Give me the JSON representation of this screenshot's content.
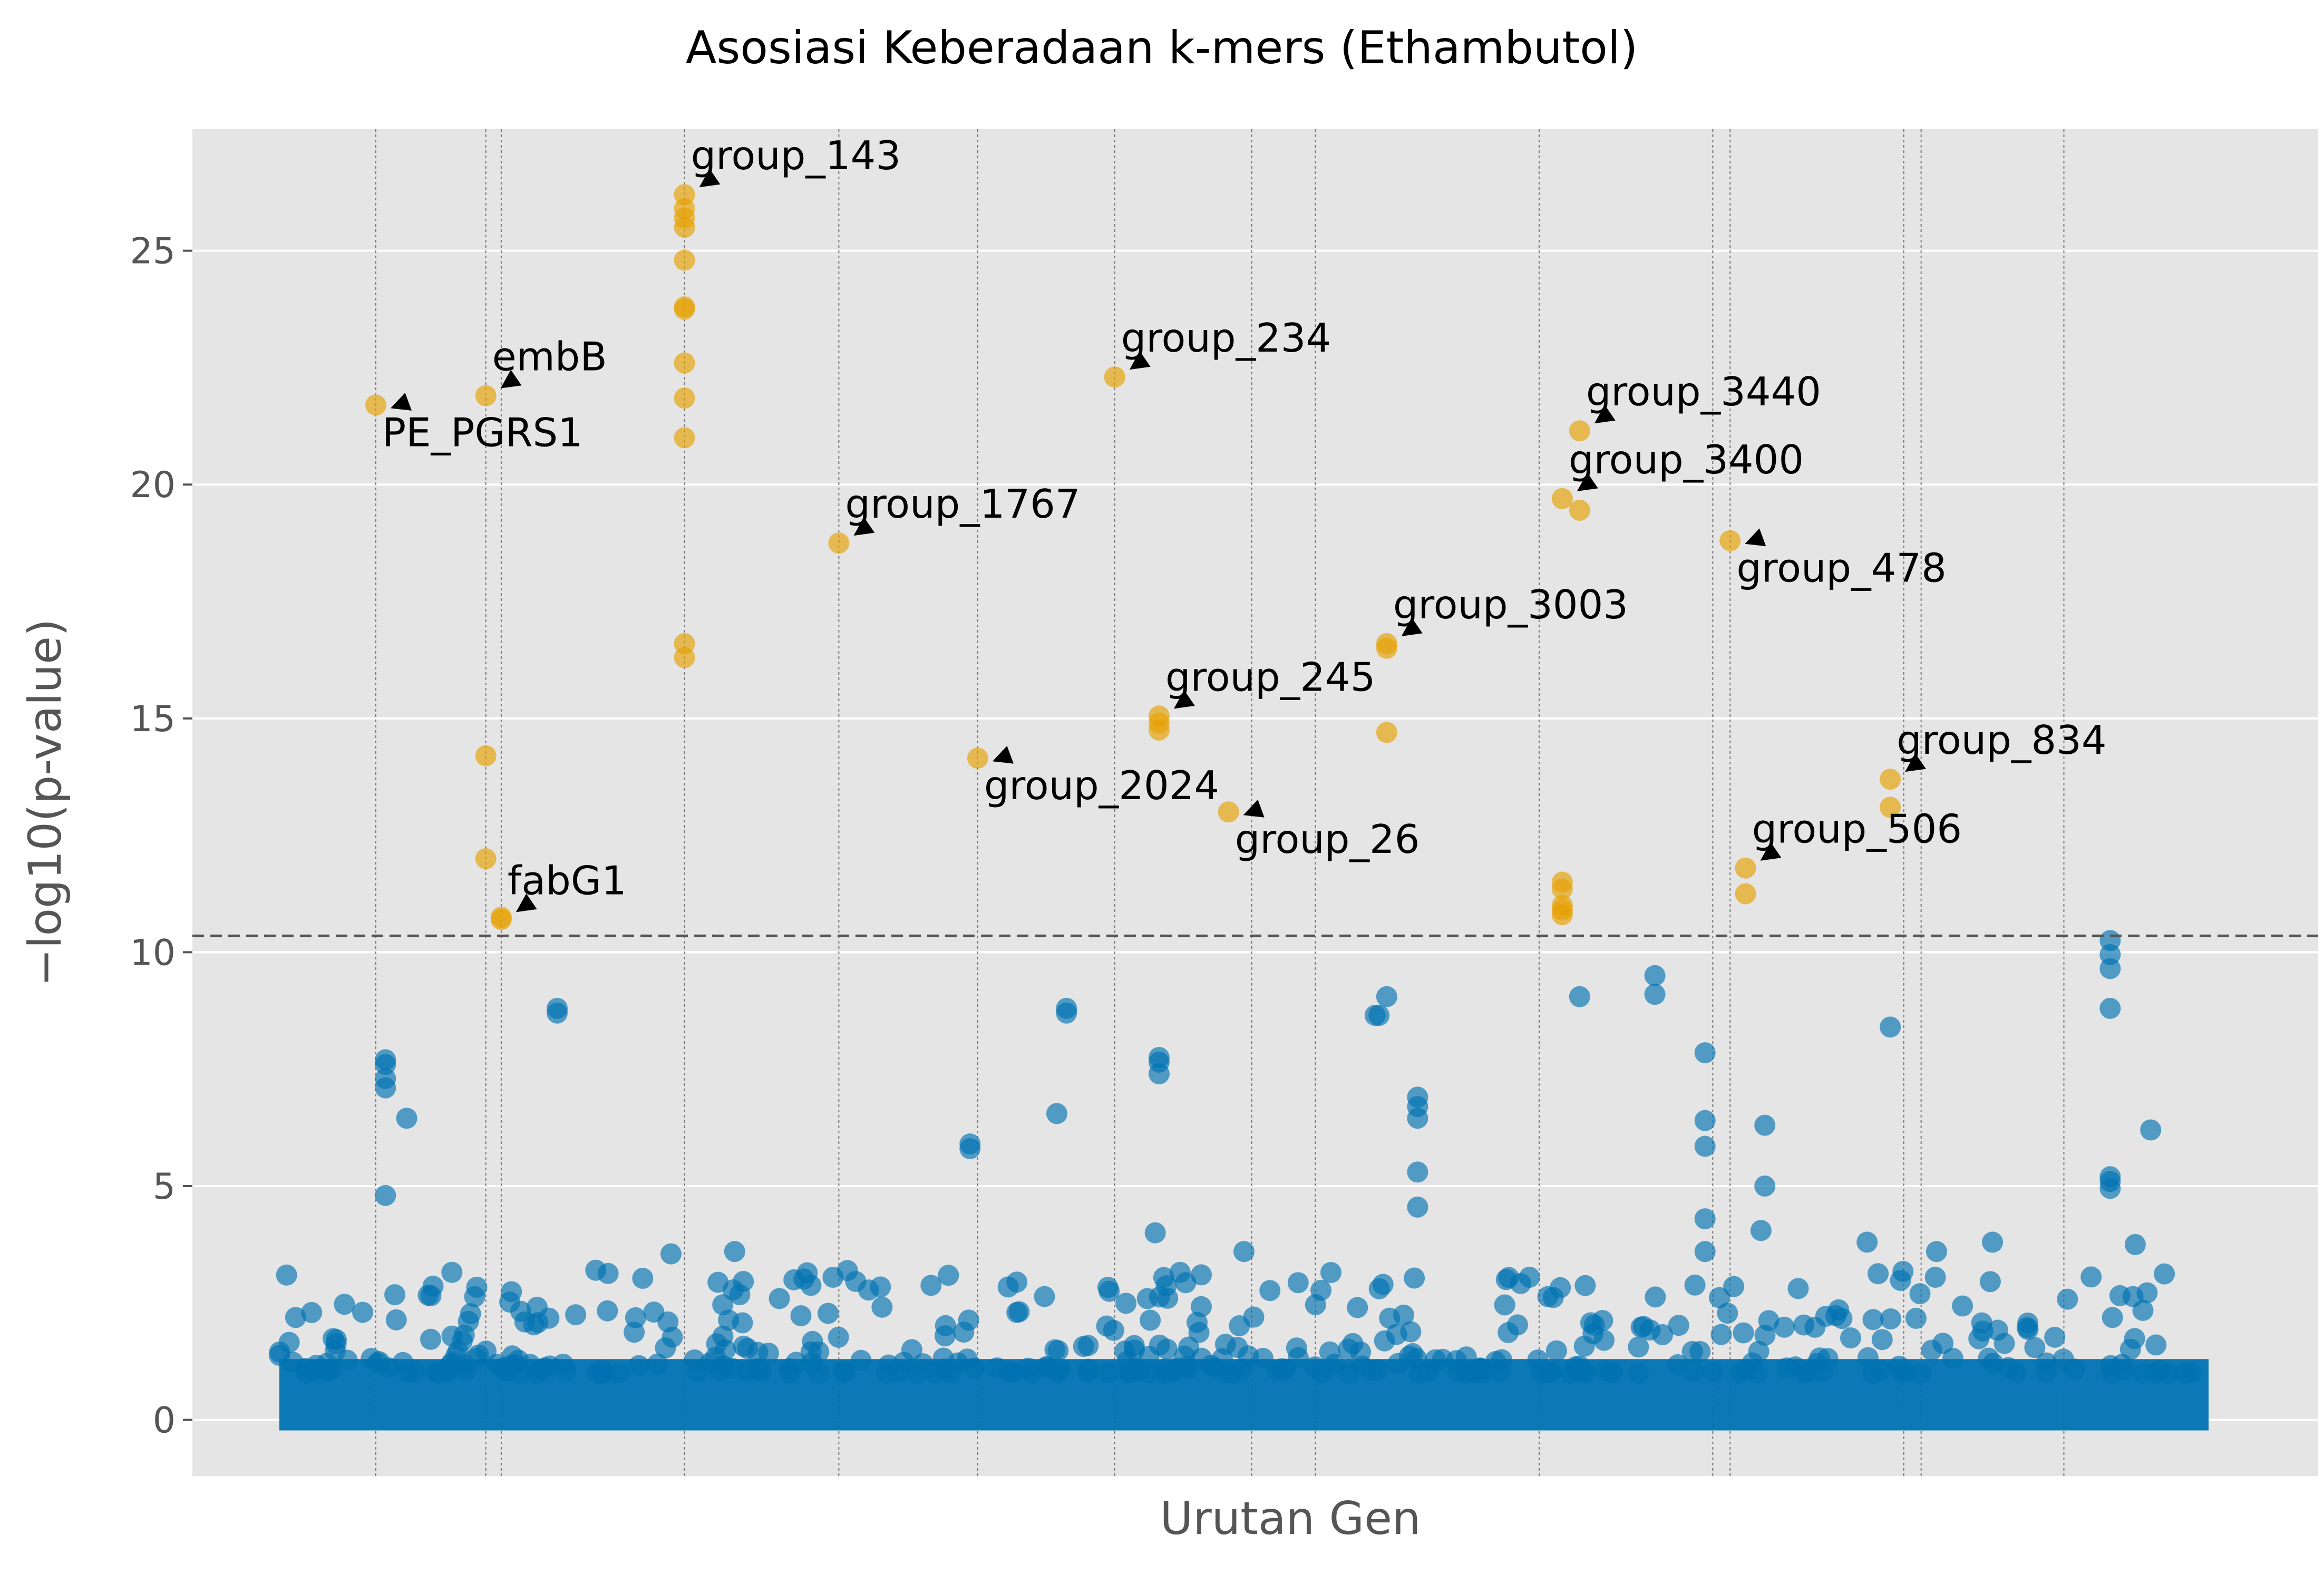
{
  "chart_data": {
    "type": "scatter",
    "title": "Asosiasi Keberadaan k-mers (Ethambutol)",
    "xlabel": "Urutan Gen",
    "ylabel": "−log10(p-value)",
    "ylim": [
      -1.2,
      27.6
    ],
    "xlim": [
      0,
      1000
    ],
    "y_ticks": [
      "0",
      "5",
      "10",
      "15",
      "20",
      "25"
    ],
    "grid": true,
    "threshold": 10.35,
    "colors": {
      "background": "#e5e5e5",
      "significant": "#e69f00",
      "non_significant": "#0072b2",
      "threshold_line": "#555555",
      "grid": "#ffffff"
    },
    "gene_boundaries": [
      50,
      107,
      115,
      210,
      290,
      362,
      433,
      504,
      537,
      653,
      743,
      752,
      842,
      851,
      925
    ],
    "significant_points": [
      {
        "x": 50,
        "y": 21.7
      },
      {
        "x": 107,
        "y": 21.9
      },
      {
        "x": 107,
        "y": 14.2
      },
      {
        "x": 107,
        "y": 12.0
      },
      {
        "x": 115,
        "y": 10.7
      },
      {
        "x": 115,
        "y": 10.75
      },
      {
        "x": 210,
        "y": 26.2
      },
      {
        "x": 210,
        "y": 25.9
      },
      {
        "x": 210,
        "y": 25.7
      },
      {
        "x": 210,
        "y": 25.5
      },
      {
        "x": 210,
        "y": 24.8
      },
      {
        "x": 210,
        "y": 23.8
      },
      {
        "x": 210,
        "y": 23.75
      },
      {
        "x": 210,
        "y": 22.6
      },
      {
        "x": 210,
        "y": 21.85
      },
      {
        "x": 210,
        "y": 21.0
      },
      {
        "x": 210,
        "y": 16.6
      },
      {
        "x": 210,
        "y": 16.3
      },
      {
        "x": 290,
        "y": 18.75
      },
      {
        "x": 362,
        "y": 14.15
      },
      {
        "x": 433,
        "y": 22.3
      },
      {
        "x": 456,
        "y": 15.05
      },
      {
        "x": 456,
        "y": 14.9
      },
      {
        "x": 456,
        "y": 14.75
      },
      {
        "x": 492,
        "y": 13.0
      },
      {
        "x": 574,
        "y": 16.6
      },
      {
        "x": 574,
        "y": 16.5
      },
      {
        "x": 574,
        "y": 14.7
      },
      {
        "x": 665,
        "y": 19.7
      },
      {
        "x": 665,
        "y": 11.5
      },
      {
        "x": 665,
        "y": 11.35
      },
      {
        "x": 665,
        "y": 11.0
      },
      {
        "x": 665,
        "y": 10.9
      },
      {
        "x": 665,
        "y": 10.8
      },
      {
        "x": 674,
        "y": 21.15
      },
      {
        "x": 674,
        "y": 19.45
      },
      {
        "x": 752,
        "y": 18.8
      },
      {
        "x": 760,
        "y": 11.8
      },
      {
        "x": 760,
        "y": 11.25
      },
      {
        "x": 835,
        "y": 13.7
      },
      {
        "x": 835,
        "y": 13.1
      }
    ],
    "non_significant_peaks": [
      {
        "x": 55,
        "y": 7.7
      },
      {
        "x": 55,
        "y": 7.6
      },
      {
        "x": 55,
        "y": 7.3
      },
      {
        "x": 55,
        "y": 7.1
      },
      {
        "x": 55,
        "y": 4.8
      },
      {
        "x": 66,
        "y": 6.45
      },
      {
        "x": 144,
        "y": 8.8
      },
      {
        "x": 144,
        "y": 8.7
      },
      {
        "x": 358,
        "y": 5.9
      },
      {
        "x": 358,
        "y": 5.8
      },
      {
        "x": 408,
        "y": 8.8
      },
      {
        "x": 408,
        "y": 8.7
      },
      {
        "x": 403,
        "y": 6.55
      },
      {
        "x": 456,
        "y": 7.75
      },
      {
        "x": 456,
        "y": 7.65
      },
      {
        "x": 456,
        "y": 7.4
      },
      {
        "x": 454,
        "y": 4.0
      },
      {
        "x": 570,
        "y": 8.65
      },
      {
        "x": 568,
        "y": 8.65
      },
      {
        "x": 574,
        "y": 9.05
      },
      {
        "x": 590,
        "y": 6.9
      },
      {
        "x": 590,
        "y": 6.7
      },
      {
        "x": 590,
        "y": 6.45
      },
      {
        "x": 590,
        "y": 5.3
      },
      {
        "x": 590,
        "y": 4.55
      },
      {
        "x": 674,
        "y": 9.05
      },
      {
        "x": 713,
        "y": 9.5
      },
      {
        "x": 713,
        "y": 9.1
      },
      {
        "x": 739,
        "y": 7.85
      },
      {
        "x": 739,
        "y": 6.4
      },
      {
        "x": 739,
        "y": 5.85
      },
      {
        "x": 739,
        "y": 4.3
      },
      {
        "x": 739,
        "y": 3.6
      },
      {
        "x": 770,
        "y": 6.3
      },
      {
        "x": 770,
        "y": 5.0
      },
      {
        "x": 768,
        "y": 4.05
      },
      {
        "x": 835,
        "y": 8.4
      },
      {
        "x": 949,
        "y": 10.25
      },
      {
        "x": 949,
        "y": 9.95
      },
      {
        "x": 949,
        "y": 9.65
      },
      {
        "x": 949,
        "y": 8.8
      },
      {
        "x": 949,
        "y": 5.2
      },
      {
        "x": 949,
        "y": 5.1
      },
      {
        "x": 949,
        "y": 4.95
      },
      {
        "x": 970,
        "y": 6.2
      },
      {
        "x": 164,
        "y": 3.2
      },
      {
        "x": 236,
        "y": 3.6
      },
      {
        "x": 203,
        "y": 3.55
      },
      {
        "x": 287,
        "y": 3.05
      },
      {
        "x": 500,
        "y": 3.6
      },
      {
        "x": 888,
        "y": 3.8
      },
      {
        "x": 962,
        "y": 3.75
      },
      {
        "x": 823,
        "y": 3.8
      },
      {
        "x": 859,
        "y": 3.6
      },
      {
        "x": 636,
        "y": 3.0
      },
      {
        "x": 648,
        "y": 3.05
      }
    ],
    "annotations": [
      {
        "label": "PE_PGRS1",
        "x": 50,
        "y": 21.7,
        "side": "below"
      },
      {
        "label": "embB",
        "x": 107,
        "y": 21.9,
        "side": "above"
      },
      {
        "label": "fabG1",
        "x": 115,
        "y": 10.7,
        "side": "above"
      },
      {
        "label": "group_143",
        "x": 210,
        "y": 26.2,
        "side": "above"
      },
      {
        "label": "group_1767",
        "x": 290,
        "y": 18.75,
        "side": "above"
      },
      {
        "label": "group_2024",
        "x": 362,
        "y": 14.15,
        "side": "below"
      },
      {
        "label": "group_234",
        "x": 433,
        "y": 22.3,
        "side": "above"
      },
      {
        "label": "group_245",
        "x": 456,
        "y": 15.05,
        "side": "above"
      },
      {
        "label": "group_26",
        "x": 492,
        "y": 13.0,
        "side": "below"
      },
      {
        "label": "group_3003",
        "x": 574,
        "y": 16.6,
        "side": "above"
      },
      {
        "label": "group_3400",
        "x": 665,
        "y": 19.7,
        "side": "above"
      },
      {
        "label": "group_3440",
        "x": 674,
        "y": 21.15,
        "side": "above"
      },
      {
        "label": "group_478",
        "x": 752,
        "y": 18.8,
        "side": "below"
      },
      {
        "label": "group_506",
        "x": 760,
        "y": 11.8,
        "side": "above"
      },
      {
        "label": "group_834",
        "x": 835,
        "y": 13.7,
        "side": "above"
      }
    ]
  }
}
